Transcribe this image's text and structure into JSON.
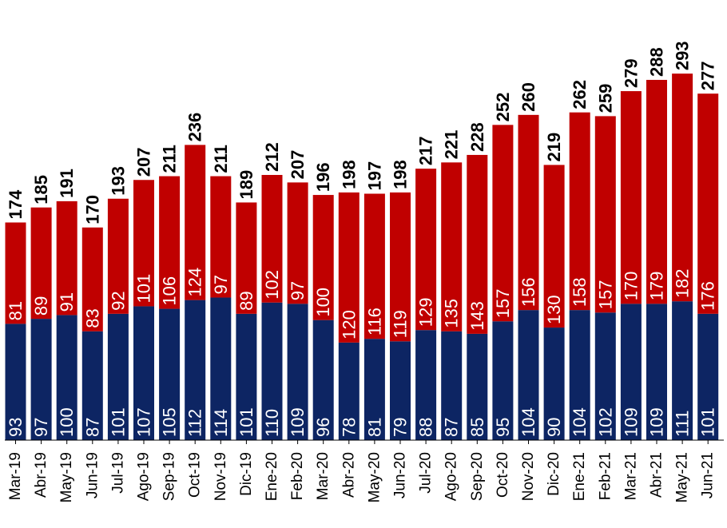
{
  "chart_data": {
    "type": "bar",
    "stacked": true,
    "categories": [
      "Mar-19",
      "Abr-19",
      "May-19",
      "Jun-19",
      "Jul-19",
      "Ago-19",
      "Sep-19",
      "Oct-19",
      "Nov-19",
      "Dic-19",
      "Ene-20",
      "Feb-20",
      "Mar-20",
      "Abr-20",
      "May-20",
      "Jun-20",
      "Jul-20",
      "Ago-20",
      "Sep-20",
      "Oct-20",
      "Nov-20",
      "Dic-20",
      "Ene-21",
      "Feb-21",
      "Mar-21",
      "Abr-21",
      "May-21",
      "Jun-21"
    ],
    "series": [
      {
        "values": [
          93,
          97,
          100,
          87,
          101,
          107,
          105,
          112,
          114,
          101,
          110,
          109,
          96,
          78,
          81,
          79,
          88,
          87,
          85,
          95,
          104,
          90,
          104,
          102,
          109,
          109,
          111,
          101
        ],
        "color": "#0d2563"
      },
      {
        "values": [
          81,
          89,
          91,
          83,
          92,
          101,
          106,
          124,
          97,
          89,
          102,
          97,
          100,
          120,
          116,
          119,
          129,
          135,
          143,
          157,
          156,
          130,
          158,
          157,
          170,
          179,
          182,
          176
        ],
        "color": "#c00000"
      }
    ],
    "totals": [
      174,
      185,
      191,
      170,
      193,
      207,
      211,
      236,
      211,
      189,
      212,
      207,
      196,
      198,
      197,
      198,
      217,
      221,
      228,
      252,
      260,
      219,
      262,
      259,
      279,
      288,
      293,
      277
    ],
    "data_labels": true,
    "grid": false,
    "legend": "none",
    "ylim": [
      0,
      300
    ]
  }
}
